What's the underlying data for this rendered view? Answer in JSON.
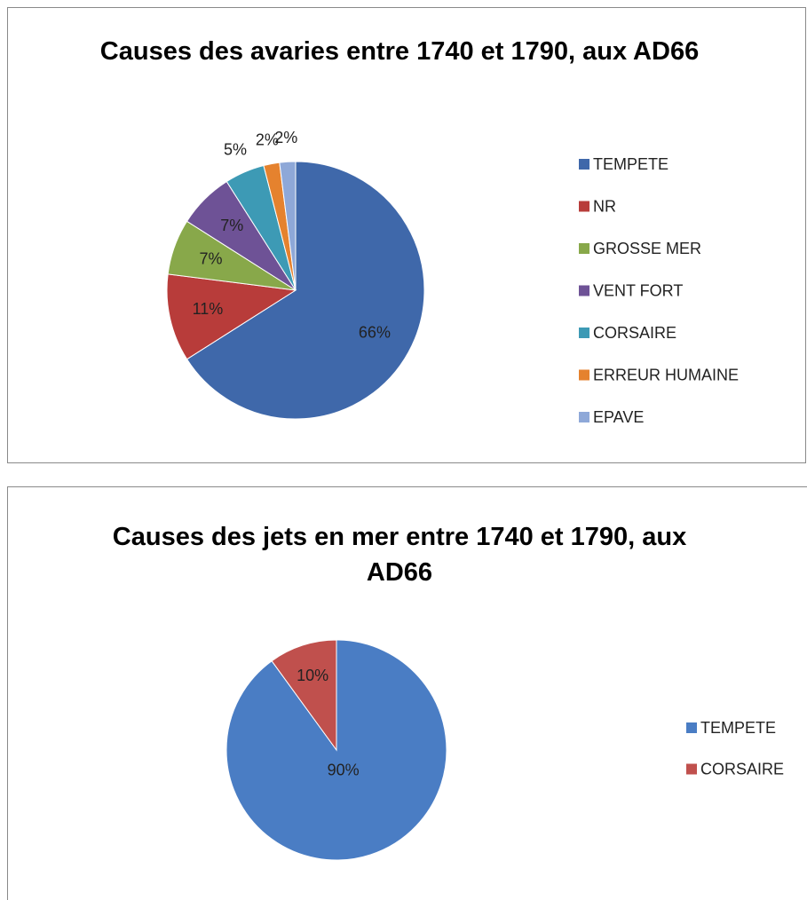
{
  "chart_data": [
    {
      "type": "pie",
      "title": "Causes des avaries entre 1740 et 1790, aux AD66",
      "categories": [
        "TEMPETE",
        "NR",
        "GROSSE MER",
        "VENT FORT",
        "CORSAIRE",
        "ERREUR HUMAINE",
        "EPAVE"
      ],
      "values": [
        66,
        11,
        7,
        7,
        5,
        2,
        2
      ],
      "value_labels": [
        "66%",
        "11%",
        "7%",
        "7%",
        "5%",
        "2%",
        "2%"
      ],
      "colors": [
        "#3f68aa",
        "#b83c3a",
        "#88a84a",
        "#6e5296",
        "#3d9ab5",
        "#e5822e",
        "#8ea8d8"
      ],
      "legend": "right"
    },
    {
      "type": "pie",
      "title": "Causes des jets en mer entre 1740 et 1790, aux AD66",
      "categories": [
        "TEMPETE",
        "CORSAIRE"
      ],
      "values": [
        90,
        10
      ],
      "value_labels": [
        "90%",
        "10%"
      ],
      "colors": [
        "#4a7dc4",
        "#c0504d"
      ],
      "legend": "right"
    }
  ]
}
